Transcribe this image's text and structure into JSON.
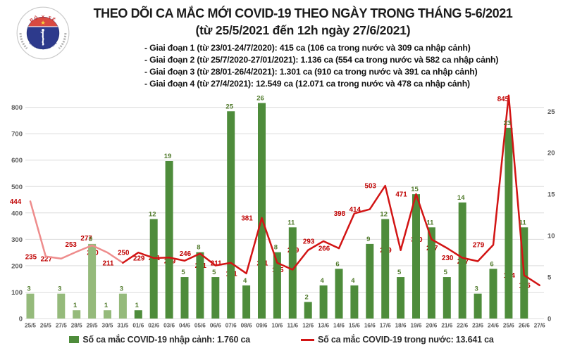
{
  "header": {
    "logo": {
      "top": "BỘ Y TẾ",
      "bottom": "MINISTRY OF HEALTH"
    },
    "title": "THEO DÕI CA MẮC MỚI COVID-19 THEO NGÀY TRONG THÁNG 5-6/2021",
    "subtitle": "(từ 25/5/2021 đến 12h ngày 27/6/2021)",
    "notes": [
      "- Giai đoạn 1 (từ 23/01-24/7/2020): 415 ca (106 ca trong nước và 309 ca nhập cảnh)",
      "- Giai đoạn 2 (từ 25/7/2020-27/01/2021): 1.136 ca (554 ca trong nước và 582 ca nhập cảnh)",
      "- Giai đoạn 3 (từ 28/01-26/4/2021): 1.301 ca (910 ca trong nước và 391 ca nhập cảnh)",
      "- Giai đoạn 4 (từ 27/4/2021): 12.549 ca (12.071 ca trong nước và 478 ca nhập cảnh)"
    ]
  },
  "chart_data": {
    "type": "combo-bar-line",
    "categories": [
      "25/5",
      "26/5",
      "27/5",
      "28/5",
      "29/5",
      "30/5",
      "31/5",
      "01/6",
      "02/6",
      "03/6",
      "04/6",
      "05/6",
      "06/6",
      "07/6",
      "08/6",
      "09/6",
      "10/6",
      "11/6",
      "12/6",
      "13/6",
      "14/6",
      "15/6",
      "16/6",
      "17/6",
      "18/6",
      "19/6",
      "20/6",
      "21/6",
      "22/6",
      "23/6",
      "24/6",
      "25/6",
      "26/6",
      "27/6"
    ],
    "series": [
      {
        "name": "Số ca mắc COVID-19 nhập cảnh",
        "type": "bar",
        "axis": "right",
        "values": [
          3,
          null,
          3,
          1,
          9,
          1,
          3,
          1,
          12,
          19,
          5,
          8,
          5,
          25,
          4,
          26,
          8,
          11,
          2,
          4,
          6,
          4,
          9,
          12,
          5,
          15,
          11,
          5,
          14,
          3,
          6,
          23,
          11,
          null
        ]
      },
      {
        "name": "Số ca mắc COVID-19 trong nước",
        "type": "line",
        "axis": "left",
        "values": [
          444,
          235,
          227,
          253,
          277,
          250,
          211,
          250,
          229,
          231,
          219,
          246,
          201,
          211,
          171,
          381,
          211,
          185,
          259,
          293,
          266,
          398,
          414,
          503,
          259,
          471,
          300,
          267,
          230,
          217,
          279,
          845,
          164,
          126
        ]
      }
    ],
    "left_axis": {
      "min": 0,
      "max": 850,
      "ticks": [
        0,
        100,
        200,
        300,
        400,
        500,
        600,
        700,
        800
      ]
    },
    "right_axis": {
      "min": 0,
      "max": 27,
      "ticks": [
        0,
        5,
        10,
        15,
        20,
        25
      ]
    },
    "grid": true,
    "legend_position": "bottom",
    "may_points": 7,
    "label_sides": [
      "l",
      "l",
      "l",
      "a",
      "a",
      "l",
      "l",
      "l",
      "l",
      "l",
      "l",
      "l",
      "l",
      "l",
      "l",
      "l",
      "l",
      "l",
      "l",
      "l",
      "l",
      "l",
      "l",
      "l",
      "l",
      "l",
      "l",
      "l",
      "l",
      "l",
      "l",
      "a",
      "l",
      "l"
    ],
    "colors": {
      "bar_may": "#95ba7b",
      "bar_june": "#4e8c3b",
      "line_may": "#ee8c8c",
      "line_june": "#d21414",
      "bar_label": "#507a2b",
      "line_label": "#bf0000",
      "axis_text": "#595959",
      "grid": "#dcdcdc"
    }
  },
  "legend": {
    "items": [
      {
        "marker": "bar",
        "label": "Số ca mắc COVID-19 nhập cảnh: 1.760 ca"
      },
      {
        "marker": "line",
        "label": "Số ca mắc COVID-19 trong nước: 13.641 ca"
      }
    ]
  }
}
